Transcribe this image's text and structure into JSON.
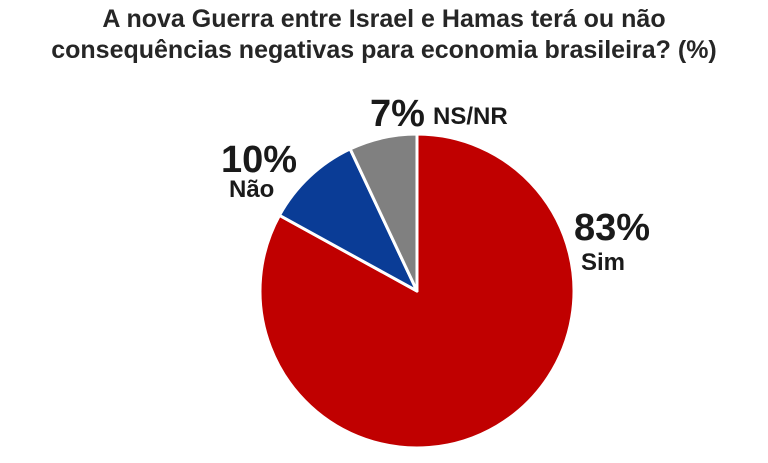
{
  "title_line1": "A nova Guerra entre Israel e Hamas terá ou não",
  "title_line2": "consequências negativas para economia brasileira? (%)",
  "chart_data": {
    "type": "pie",
    "title": "A nova Guerra entre Israel e Hamas terá ou não consequências negativas para economia brasileira? (%)",
    "categories": [
      "Sim",
      "Não",
      "NS/NR"
    ],
    "values": [
      83,
      10,
      7
    ],
    "labels": [
      "83%",
      "10%",
      "7%"
    ],
    "colors": [
      "#c00000",
      "#0a3c96",
      "#808080"
    ],
    "start": "12 o'clock",
    "direction": "clockwise",
    "legend": "none"
  }
}
